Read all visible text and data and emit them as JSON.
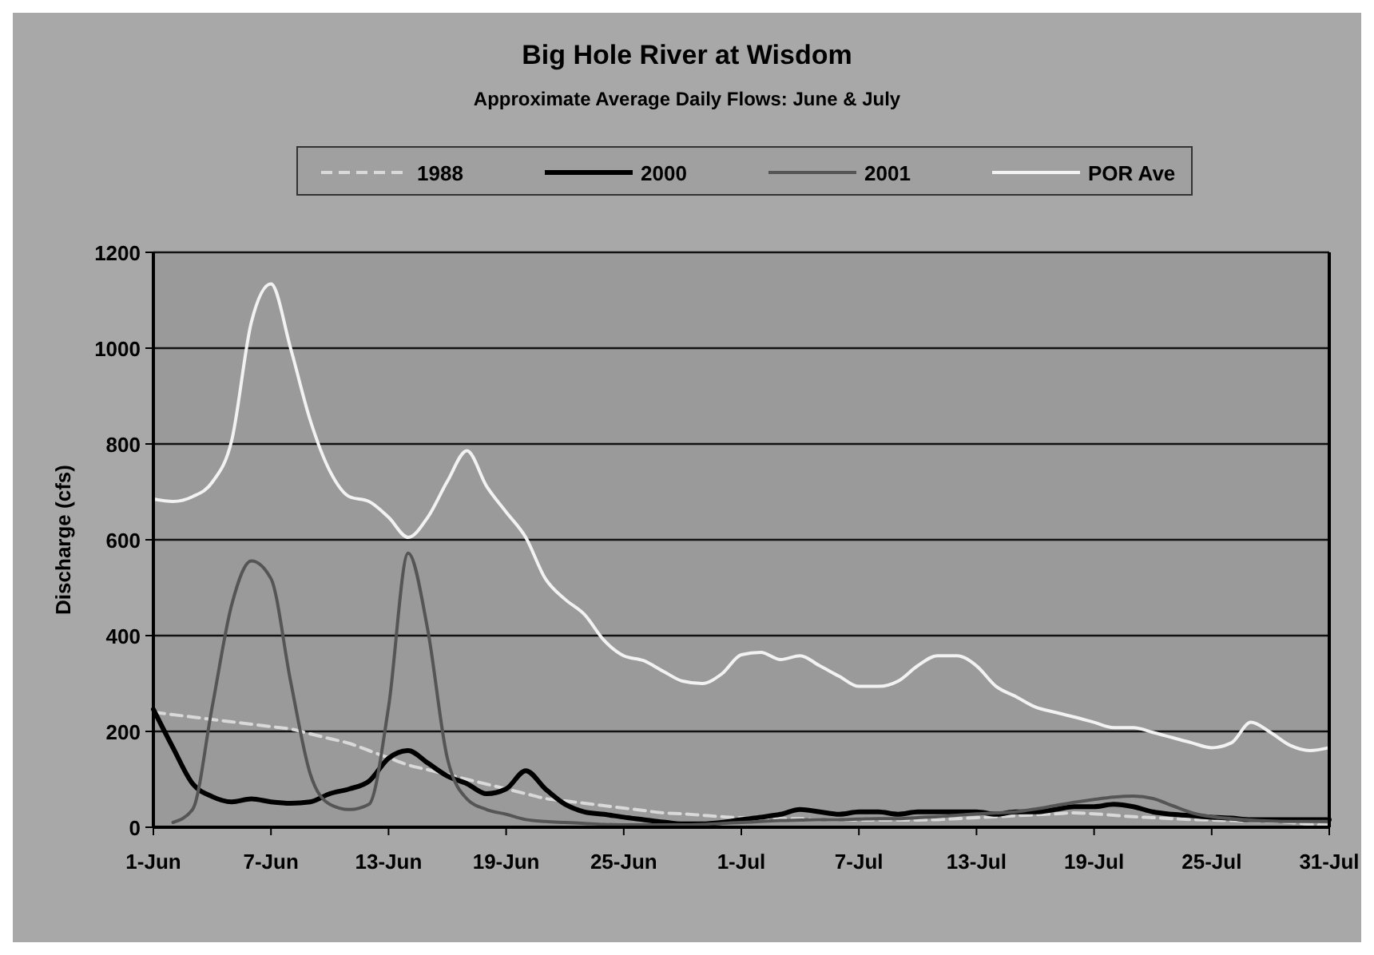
{
  "chart_data": {
    "type": "line",
    "title": "Big Hole River at Wisdom",
    "subtitle": "Approximate Average Daily Flows: June & July",
    "ylabel": "Discharge (cfs)",
    "categories": [
      "1-Jun",
      null,
      null,
      null,
      null,
      null,
      "7-Jun",
      null,
      null,
      null,
      null,
      null,
      "13-Jun",
      null,
      null,
      null,
      null,
      null,
      "19-Jun",
      null,
      null,
      null,
      null,
      null,
      "25-Jun",
      null,
      null,
      null,
      null,
      null,
      "1-Jul",
      null,
      null,
      null,
      null,
      null,
      "7-Jul",
      null,
      null,
      null,
      null,
      null,
      "13-Jul",
      null,
      null,
      null,
      null,
      null,
      "19-Jul",
      null,
      null,
      null,
      null,
      null,
      "25-Jul",
      null,
      null,
      null,
      null,
      null,
      "31-Jul"
    ],
    "ylim": [
      0,
      1200
    ],
    "yticks": [
      0,
      200,
      400,
      600,
      800,
      1000,
      1200
    ],
    "grid": "y",
    "legend": "top",
    "series": [
      {
        "name": "1988",
        "color": "#d9d9d9",
        "line_style": "dashed",
        "values": [
          240,
          235,
          230,
          225,
          220,
          215,
          210,
          205,
          195,
          185,
          175,
          160,
          145,
          130,
          120,
          110,
          100,
          90,
          80,
          70,
          60,
          55,
          50,
          45,
          40,
          35,
          30,
          28,
          25,
          22,
          20,
          20,
          18,
          18,
          16,
          16,
          15,
          15,
          15,
          15,
          16,
          18,
          20,
          22,
          24,
          26,
          28,
          30,
          28,
          25,
          22,
          20,
          18,
          16,
          15,
          14,
          13,
          12,
          10,
          6,
          4
        ]
      },
      {
        "name": "2000",
        "color": "#000000",
        "line_style": "solid",
        "values": [
          246,
          166,
          91,
          64,
          53,
          59,
          53,
          50,
          53,
          70,
          80,
          96,
          144,
          160,
          134,
          107,
          91,
          70,
          80,
          118,
          80,
          48,
          32,
          27,
          21,
          16,
          11,
          7,
          7,
          10,
          16,
          21,
          27,
          37,
          32,
          27,
          32,
          32,
          27,
          32,
          32,
          32,
          32,
          27,
          32,
          32,
          37,
          43,
          43,
          48,
          43,
          32,
          27,
          24,
          21,
          19,
          16,
          16,
          16,
          16,
          16
        ]
      },
      {
        "name": "2001",
        "color": "#555555",
        "line_style": "solid",
        "values": [
          null,
          10,
          37,
          251,
          465,
          556,
          519,
          305,
          112,
          48,
          37,
          48,
          251,
          572,
          412,
          144,
          59,
          37,
          27,
          16,
          12,
          10,
          8,
          6,
          5,
          5,
          5,
          5,
          6,
          8,
          10,
          12,
          14,
          15,
          16,
          16,
          17,
          18,
          18,
          20,
          22,
          25,
          28,
          30,
          32,
          38,
          45,
          52,
          58,
          63,
          65,
          60,
          45,
          30,
          22,
          18,
          15,
          13,
          12,
          12,
          12
        ]
      },
      {
        "name": "POR Ave",
        "color": "#f2f2f2",
        "line_style": "solid",
        "values": [
          685,
          680,
          690,
          720,
          808,
          1054,
          1134,
          1000,
          850,
          744,
          690,
          680,
          647,
          605,
          647,
          722,
          786,
          712,
          658,
          605,
          519,
          476,
          444,
          390,
          358,
          348,
          326,
          305,
          300,
          320,
          360,
          365,
          350,
          358,
          337,
          315,
          294,
          294,
          305,
          337,
          358,
          358,
          337,
          294,
          273,
          251,
          240,
          230,
          219,
          208,
          208,
          198,
          187,
          176,
          166,
          176,
          219,
          198,
          171,
          160,
          166
        ]
      }
    ]
  }
}
